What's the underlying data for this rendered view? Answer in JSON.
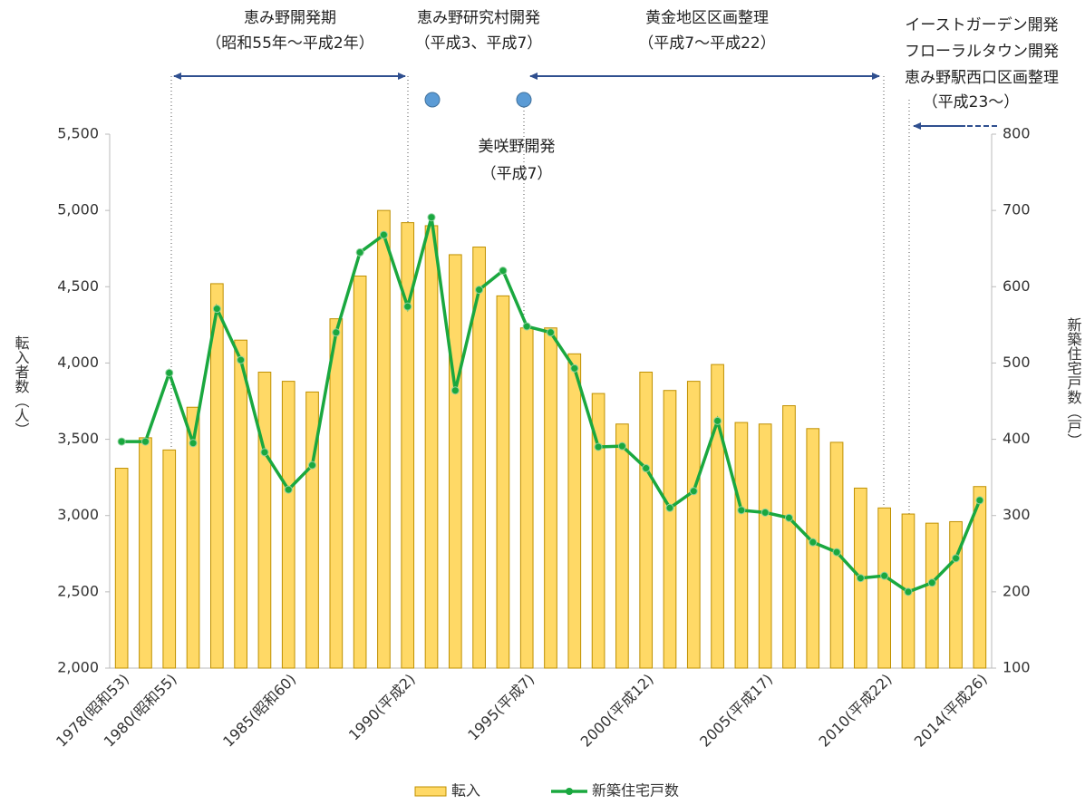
{
  "chart_data": {
    "type": "bar-line",
    "categories": [
      "1978(昭和53)",
      null,
      "1980(昭和55)",
      null,
      null,
      null,
      null,
      "1985(昭和60)",
      null,
      null,
      null,
      null,
      "1990(平成2)",
      null,
      null,
      null,
      null,
      "1995(平成7)",
      null,
      null,
      null,
      null,
      "2000(平成12)",
      null,
      null,
      null,
      null,
      "2005(平成17)",
      null,
      null,
      null,
      null,
      "2010(平成22)",
      null,
      null,
      null,
      "2014(平成26)"
    ],
    "series": [
      {
        "name": "転入",
        "type": "bar",
        "color": "#ffd966",
        "edge": "#bf9000",
        "values": [
          3310,
          3510,
          3430,
          3710,
          4520,
          4150,
          3940,
          3880,
          3810,
          4290,
          4570,
          5000,
          4920,
          4900,
          4710,
          4760,
          4440,
          4230,
          4230,
          4060,
          3800,
          3600,
          3940,
          3820,
          3880,
          3990,
          3610,
          3600,
          3720,
          3570,
          3480,
          3180,
          3050,
          3010,
          2950,
          2960,
          3190
        ]
      },
      {
        "name": "新築住宅戸数",
        "type": "line",
        "axis": "y2",
        "color": "#1aa83f",
        "values": [
          397,
          397,
          487,
          395,
          571,
          504,
          383,
          334,
          366,
          540,
          645,
          668,
          574,
          691,
          464,
          596,
          621,
          548,
          540,
          493,
          390,
          391,
          362,
          310,
          332,
          424,
          307,
          304,
          297,
          265,
          252,
          218,
          221,
          200,
          212,
          244,
          320
        ]
      }
    ],
    "ylabel": "転入者数（人）",
    "y2label": "新築住宅戸数（戸）",
    "ylim": [
      2000,
      5500
    ],
    "yticks": [
      {
        "value": 2000,
        "label": "2,000"
      },
      {
        "value": 2500,
        "label": "2,500"
      },
      {
        "value": 3000,
        "label": "3,000"
      },
      {
        "value": 3500,
        "label": "3,500"
      },
      {
        "value": 4000,
        "label": "4,000"
      },
      {
        "value": 4500,
        "label": "4,500"
      },
      {
        "value": 5000,
        "label": "5,000"
      },
      {
        "value": 5500,
        "label": "5,500"
      }
    ],
    "y2lim": [
      100,
      800
    ],
    "y2ticks": [
      100,
      200,
      300,
      400,
      500,
      600,
      700,
      800
    ],
    "annotations": [
      {
        "lines": [
          "恵み野開発期",
          "（昭和55年～平成2年）"
        ]
      },
      {
        "lines": [
          "恵み野研究村開発",
          "（平成3、平成7）"
        ]
      },
      {
        "lines": [
          "黄金地区区画整理",
          "（平成7～平成22）"
        ]
      },
      {
        "lines": [
          "イーストガーデン開発",
          "フローラルタウン開発",
          "恵み野駅西口区画整理",
          "（平成23～）"
        ]
      },
      {
        "lines": [
          "美咲野開発",
          "（平成7）"
        ]
      }
    ]
  }
}
